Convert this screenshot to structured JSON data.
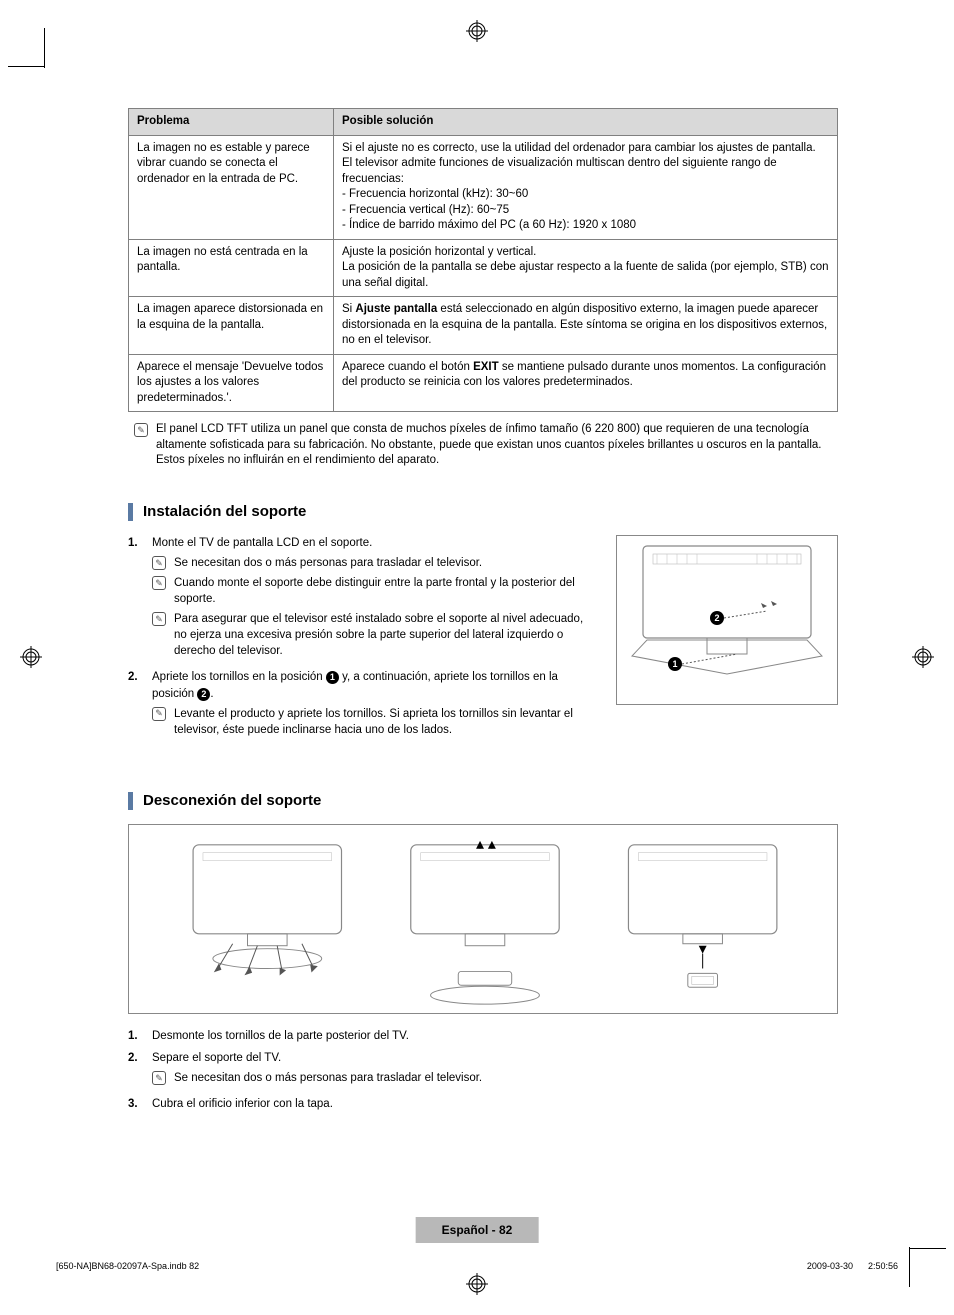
{
  "colors": {
    "table_border": "#808080",
    "table_header_bg": "#d9d9d9",
    "section_bar": "#5a7aa3",
    "footer_bg": "#b8b8b8",
    "text": "#000000",
    "bg": "#ffffff"
  },
  "table": {
    "headers": [
      "Problema",
      "Posible solución"
    ],
    "rows": [
      {
        "problem": "La imagen no es estable y parece vibrar cuando se conecta el ordenador en la entrada de PC.",
        "solution_lines": [
          "Si el ajuste no es correcto, use la utilidad del ordenador para cambiar los ajustes de pantalla.",
          "El televisor admite funciones de visualización multiscan dentro del siguiente rango de frecuencias:",
          "- Frecuencia horizontal (kHz): 30~60",
          "- Frecuencia vertical (Hz): 60~75",
          "- Índice de barrido máximo del PC (a 60 Hz): 1920 x 1080"
        ]
      },
      {
        "problem": "La imagen no está centrada en la pantalla.",
        "solution_lines": [
          "Ajuste la posición horizontal y vertical.",
          "La posición de la pantalla se debe ajustar respecto a la fuente de salida (por ejemplo, STB) con una señal digital."
        ]
      },
      {
        "problem": "La imagen aparece distorsionada en la esquina de la pantalla.",
        "solution_html": "Si <b>Ajuste pantalla</b> está seleccionado en algún dispositivo externo, la imagen puede aparecer distorsionada en la esquina de la pantalla. Este síntoma se origina en los dispositivos externos, no en el televisor."
      },
      {
        "problem": "Aparece el mensaje 'Devuelve todos los ajustes a los valores predeterminados.'.",
        "solution_html": "Aparece cuando el botón <b>EXIT</b> se mantiene pulsado durante unos momentos. La configuración del producto se reinicia con los valores predeterminados."
      }
    ]
  },
  "lcd_note": "El panel LCD TFT utiliza un panel que consta de muchos píxeles de ínfimo tamaño (6 220 800) que requieren de una tecnología altamente sofisticada para su fabricación. No obstante, puede que existan unos cuantos píxeles brillantes u oscuros en la pantalla. Estos píxeles no influirán en el rendimiento del aparato.",
  "section1": {
    "title": "Instalación del soporte",
    "step1": "Monte el TV de pantalla LCD en el soporte.",
    "step1_notes": [
      "Se necesitan dos o más personas para trasladar el televisor.",
      "Cuando monte el soporte debe distinguir entre la parte frontal y la posterior del soporte.",
      "Para asegurar que el televisor esté instalado sobre el soporte al nivel adecuado, no ejerza una excesiva presión sobre la parte superior del lateral izquierdo o derecho del televisor."
    ],
    "step2_pre": "Apriete los tornillos en la posición ",
    "step2_mid": " y, a continuación, apriete los tornillos en la posición ",
    "step2_post": ".",
    "step2_notes": [
      "Levante el producto y apriete los tornillos. Si aprieta los tornillos sin levantar el televisor, éste puede inclinarse hacia uno de los lados."
    ]
  },
  "section2": {
    "title": "Desconexión del soporte",
    "step1": "Desmonte los tornillos de la parte posterior del TV.",
    "step2": "Separe el soporte del TV.",
    "step2_notes": [
      "Se necesitan dos o más personas para trasladar el televisor."
    ],
    "step3": "Cubra el orificio inferior con la tapa."
  },
  "footer": {
    "lang_page": "Español - 82",
    "file": "[650-NA]BN68-02097A-Spa.indb   82",
    "date": "2009-03-30      2:50:56"
  }
}
